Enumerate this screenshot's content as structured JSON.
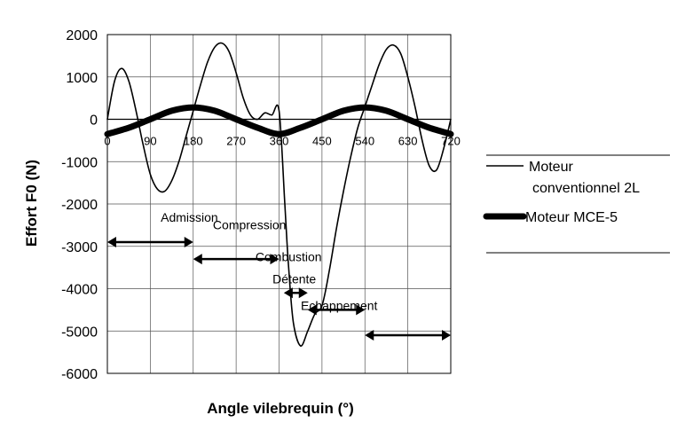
{
  "chart_data": {
    "type": "line",
    "title": "",
    "xlabel": "Angle vilebrequin (°)",
    "ylabel": "Effort F0 (N)",
    "xlim": [
      0,
      720
    ],
    "ylim": [
      -6000,
      2000
    ],
    "xticks": [
      "0",
      "90",
      "180",
      "270",
      "360",
      "450",
      "540",
      "630",
      "720"
    ],
    "yticks": [
      "2000",
      "1000",
      "0",
      "-1000",
      "-2000",
      "-3000",
      "-4000",
      "-5000",
      "-6000"
    ],
    "grid": true,
    "legend_position": "right",
    "series": [
      {
        "name": "Moteur conventionnel 2L",
        "line_width": "thin",
        "x": [
          0,
          15,
          30,
          45,
          60,
          75,
          90,
          105,
          120,
          135,
          150,
          165,
          180,
          195,
          210,
          225,
          240,
          255,
          270,
          285,
          300,
          315,
          330,
          345,
          360,
          372,
          380,
          390,
          405,
          420,
          435,
          450,
          465,
          480,
          495,
          510,
          525,
          540,
          555,
          570,
          585,
          600,
          615,
          630,
          645,
          660,
          675,
          690,
          705,
          720
        ],
        "y": [
          0,
          900,
          1200,
          900,
          200,
          -600,
          -1300,
          -1650,
          -1700,
          -1450,
          -1000,
          -400,
          200,
          800,
          1350,
          1700,
          1800,
          1600,
          1100,
          500,
          100,
          0,
          150,
          100,
          200,
          -2000,
          -3500,
          -4800,
          -5350,
          -5000,
          -4600,
          -4400,
          -3600,
          -2600,
          -1700,
          -900,
          -200,
          300,
          800,
          1300,
          1650,
          1750,
          1550,
          1000,
          300,
          -500,
          -1100,
          -1200,
          -700,
          0
        ]
      },
      {
        "name": "Moteur MCE-5",
        "line_width": "thick",
        "x": [
          0,
          45,
          90,
          135,
          180,
          225,
          270,
          315,
          360,
          405,
          450,
          495,
          540,
          585,
          630,
          675,
          720
        ],
        "y": [
          -350,
          -200,
          0,
          200,
          280,
          200,
          0,
          -200,
          -350,
          -200,
          0,
          200,
          280,
          200,
          0,
          -200,
          -350
        ]
      }
    ],
    "annotations": [
      {
        "label": "Admission",
        "from": 0,
        "to": 180,
        "y": -2900
      },
      {
        "label": "Compression",
        "from": 180,
        "to": 360,
        "y": -3300
      },
      {
        "label": "Combustion",
        "from": 370,
        "to": 420,
        "y": -4100
      },
      {
        "label": "Détente",
        "from": 420,
        "to": 540,
        "y": -4500
      },
      {
        "label": "Echappement",
        "from": 540,
        "to": 720,
        "y": -5100
      }
    ],
    "colors": {
      "line": "#000000",
      "grid": "#000000",
      "background": "#ffffff"
    }
  }
}
